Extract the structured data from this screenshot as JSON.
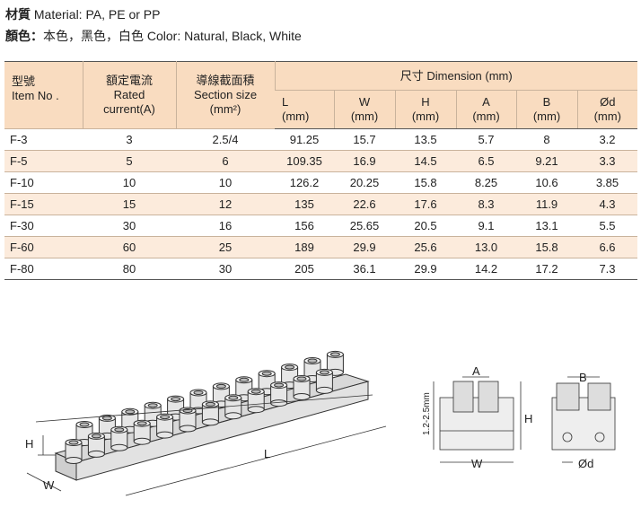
{
  "material": {
    "label": "材質",
    "text": "Material: PA, PE or PP"
  },
  "color": {
    "label": "顏色：",
    "text": "本色，黑色，白色 Color: Natural, Black, White"
  },
  "table": {
    "header": {
      "item": [
        "型號",
        "Item No ."
      ],
      "rated": [
        "額定電流",
        "Rated",
        "current(A)"
      ],
      "section": [
        "導線截面積",
        "Section size",
        "(mm²)"
      ],
      "dimension": "尺寸 Dimension (mm)",
      "dims": [
        [
          "L",
          "(mm)"
        ],
        [
          "W",
          "(mm)"
        ],
        [
          "H",
          "(mm)"
        ],
        [
          "A",
          "(mm)"
        ],
        [
          "B",
          "(mm)"
        ],
        [
          "Ød",
          "(mm)"
        ]
      ]
    },
    "rows": [
      [
        "F-3",
        "3",
        "2.5/4",
        "91.25",
        "15.7",
        "13.5",
        "5.7",
        "8",
        "3.2"
      ],
      [
        "F-5",
        "5",
        "6",
        "109.35",
        "16.9",
        "14.5",
        "6.5",
        "9.21",
        "3.3"
      ],
      [
        "F-10",
        "10",
        "10",
        "126.2",
        "20.25",
        "15.8",
        "8.25",
        "10.6",
        "3.85"
      ],
      [
        "F-15",
        "15",
        "12",
        "135",
        "22.6",
        "17.6",
        "8.3",
        "11.9",
        "4.3"
      ],
      [
        "F-30",
        "30",
        "16",
        "156",
        "25.65",
        "20.5",
        "9.1",
        "13.1",
        "5.5"
      ],
      [
        "F-60",
        "60",
        "25",
        "189",
        "29.9",
        "25.6",
        "13.0",
        "15.8",
        "6.6"
      ],
      [
        "F-80",
        "80",
        "30",
        "205",
        "36.1",
        "29.9",
        "14.2",
        "17.2",
        "7.3"
      ]
    ]
  },
  "drawing": {
    "main": {
      "h": "H",
      "w": "W",
      "l": "L"
    },
    "front": {
      "a": "A",
      "h": "H",
      "range": "1.2-2.5mm",
      "w": "W"
    },
    "side": {
      "b": "B",
      "d": "Ød"
    }
  }
}
